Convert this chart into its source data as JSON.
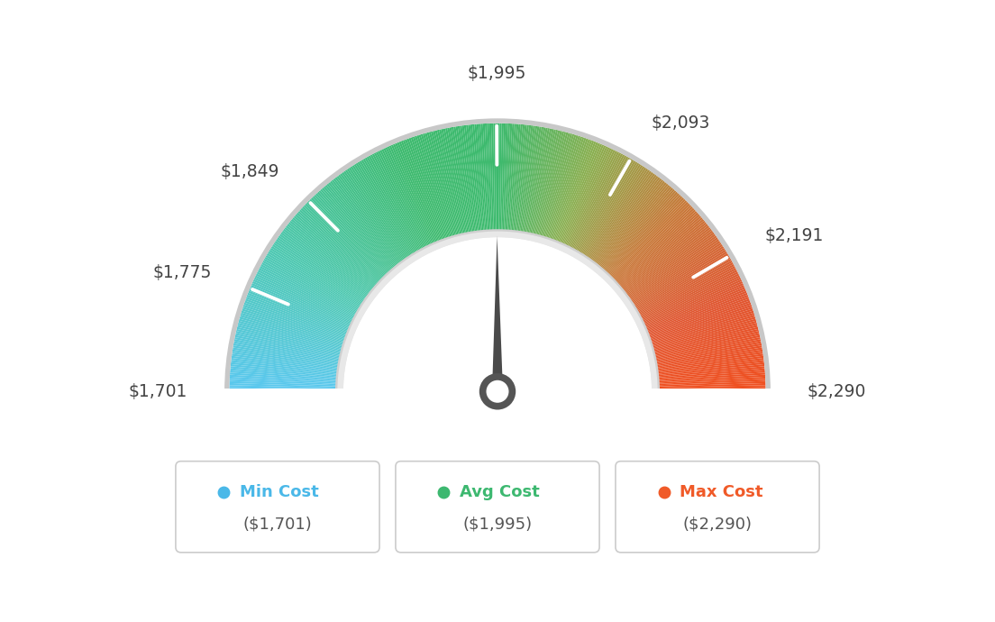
{
  "min_val": 1701,
  "avg_val": 1995,
  "max_val": 2290,
  "tick_labels": [
    "$1,701",
    "$1,775",
    "$1,849",
    "$1,995",
    "$2,093",
    "$2,191",
    "$2,290"
  ],
  "tick_values": [
    1701,
    1775,
    1849,
    1995,
    2093,
    2191,
    2290
  ],
  "legend": [
    {
      "label": "Min Cost",
      "sublabel": "($1,701)",
      "color": "#4ab8e8"
    },
    {
      "label": "Avg Cost",
      "sublabel": "($1,995)",
      "color": "#3db870"
    },
    {
      "label": "Max Cost",
      "sublabel": "($2,290)",
      "color": "#f05a28"
    }
  ],
  "background_color": "#ffffff",
  "needle_value": 1995,
  "color_stops": [
    [
      0.0,
      "#5bc8f0"
    ],
    [
      0.18,
      "#4dc8b0"
    ],
    [
      0.38,
      "#3dba6e"
    ],
    [
      0.5,
      "#3dba6e"
    ],
    [
      0.62,
      "#8aaf50"
    ],
    [
      0.75,
      "#c87838"
    ],
    [
      0.88,
      "#e05530"
    ],
    [
      1.0,
      "#f05020"
    ]
  ]
}
